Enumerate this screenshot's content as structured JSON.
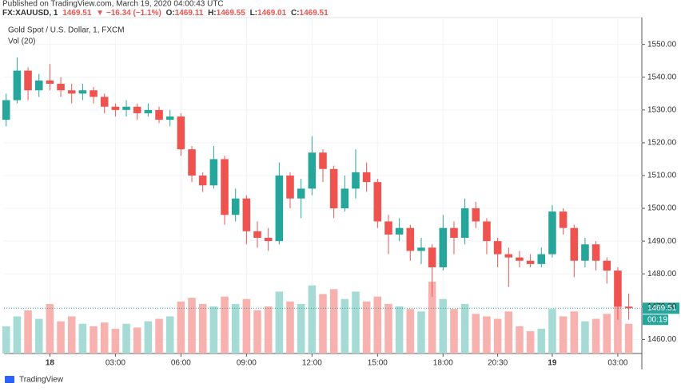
{
  "header": {
    "published": "Published on TradingView.com, March 19, 2020 04:00:43 UTC",
    "symbol": "FX:XAUUSD, 1",
    "last": "1469.51",
    "change": "▼ −16.34 (−1.1%)",
    "o_label": "O:",
    "o": "1469.11",
    "h_label": "H:",
    "h": "1469.55",
    "l_label": "L:",
    "l": "1469.01",
    "c_label": "C:",
    "c": "1469.51"
  },
  "chart_data": {
    "type": "candlestick",
    "title": "Gold Spot / U.S. Dollar, 1, FXCM",
    "volume_title": "Vol (20)",
    "up_color": "#26a69a",
    "down_color": "#ef5350",
    "volume_up_color": "#a6dbd5",
    "volume_down_color": "#f7b2b0",
    "grid": true,
    "x": [
      -2,
      -1.5,
      -1,
      -0.5,
      0,
      0.5,
      1,
      1.5,
      2,
      2.5,
      3,
      3.5,
      4,
      4.5,
      5,
      5.5,
      6,
      6.5,
      7,
      7.5,
      8,
      8.5,
      9,
      9.5,
      10,
      10.5,
      11,
      11.5,
      12,
      12.5,
      13,
      13.5,
      14,
      14.5,
      15,
      15.5,
      16,
      16.5,
      17,
      17.5,
      18,
      18.5,
      19,
      19.5,
      20,
      20.5,
      21,
      21.5,
      22,
      22.5,
      23,
      23.5,
      24,
      24.5,
      25,
      25.5,
      26,
      26.5
    ],
    "open": [
      1527,
      1533,
      1542,
      1536,
      1539,
      1538,
      1536,
      1535,
      1536,
      1534,
      1531,
      1530,
      1531,
      1529,
      1530,
      1527,
      1528,
      1518,
      1510,
      1507,
      1515,
      1498,
      1503,
      1493,
      1491,
      1490,
      1510,
      1503,
      1506,
      1517,
      1512,
      1500,
      1506,
      1511,
      1508,
      1496,
      1492,
      1494,
      1487,
      1488,
      1482,
      1494,
      1491,
      1500,
      1496,
      1490,
      1486,
      1485,
      1484,
      1483,
      1486,
      1499,
      1494,
      1484,
      1489,
      1484,
      1481,
      1470
    ],
    "close": [
      1533,
      1542,
      1536,
      1539,
      1538,
      1536,
      1535,
      1536,
      1534,
      1531,
      1530,
      1531,
      1529,
      1530,
      1527,
      1528,
      1518,
      1510,
      1507,
      1515,
      1498,
      1503,
      1493,
      1491,
      1490,
      1510,
      1503,
      1506,
      1517,
      1512,
      1500,
      1506,
      1511,
      1508,
      1496,
      1492,
      1494,
      1487,
      1488,
      1482,
      1494,
      1491,
      1500,
      1496,
      1490,
      1486,
      1485,
      1484,
      1483,
      1486,
      1499,
      1494,
      1484,
      1489,
      1484,
      1481,
      1470,
      1469.51
    ],
    "high": [
      1535,
      1546,
      1543,
      1541,
      1544,
      1540,
      1538,
      1538,
      1537,
      1535,
      1532,
      1533,
      1532,
      1532,
      1531,
      1530,
      1529,
      1519,
      1511,
      1519,
      1516,
      1506,
      1504,
      1496,
      1494,
      1514,
      1511,
      1509,
      1522,
      1518,
      1513,
      1510,
      1518,
      1514,
      1509,
      1498,
      1497,
      1495,
      1491,
      1489,
      1498,
      1496,
      1503,
      1502,
      1497,
      1491,
      1488,
      1487,
      1486,
      1488,
      1501,
      1500,
      1495,
      1491,
      1490,
      1485,
      1482,
      1474
    ],
    "low": [
      1525,
      1532,
      1533,
      1534,
      1536,
      1534,
      1532,
      1533,
      1532,
      1529,
      1528,
      1528,
      1527,
      1528,
      1526,
      1525,
      1516,
      1508,
      1505,
      1506,
      1495,
      1496,
      1489,
      1488,
      1487,
      1489,
      1500,
      1497,
      1504,
      1508,
      1497,
      1499,
      1503,
      1505,
      1494,
      1486,
      1490,
      1484,
      1483,
      1473,
      1481,
      1486,
      1489,
      1494,
      1486,
      1482,
      1476,
      1482,
      1482,
      1482,
      1485,
      1492,
      1479,
      1482,
      1481,
      1477,
      1466,
      1466
    ],
    "volume": [
      22,
      30,
      35,
      28,
      40,
      26,
      30,
      24,
      22,
      25,
      20,
      24,
      21,
      26,
      28,
      30,
      42,
      45,
      40,
      38,
      46,
      40,
      44,
      35,
      38,
      50,
      42,
      40,
      55,
      48,
      52,
      44,
      50,
      42,
      46,
      40,
      38,
      36,
      34,
      58,
      44,
      36,
      40,
      32,
      30,
      28,
      34,
      22,
      18,
      20,
      36,
      30,
      34,
      26,
      28,
      32,
      44,
      24
    ],
    "xlim": [
      -2.1,
      27.1
    ],
    "xticks": [
      {
        "value": 0,
        "label": "18"
      },
      {
        "value": 3,
        "label": "03:00"
      },
      {
        "value": 6,
        "label": "06:00"
      },
      {
        "value": 9,
        "label": "09:00"
      },
      {
        "value": 12,
        "label": "12:00"
      },
      {
        "value": 15,
        "label": "15:00"
      },
      {
        "value": 18,
        "label": "18:00"
      },
      {
        "value": 20.5,
        "label": "20:30"
      },
      {
        "value": 23,
        "label": "19"
      },
      {
        "value": 26,
        "label": "03:00"
      }
    ],
    "ylim": [
      1455.7,
      1558.2
    ],
    "yticks": [
      {
        "value": 1460,
        "label": "1460.00"
      },
      {
        "value": 1470,
        "label": "1470.00"
      },
      {
        "value": 1480,
        "label": "1480.00"
      },
      {
        "value": 1490,
        "label": "1490.00"
      },
      {
        "value": 1500,
        "label": "1500.00"
      },
      {
        "value": 1510,
        "label": "1510.00"
      },
      {
        "value": 1520,
        "label": "1520.00"
      },
      {
        "value": 1530,
        "label": "1530.00"
      },
      {
        "value": 1540,
        "label": "1540.00"
      },
      {
        "value": 1550,
        "label": "1550.00"
      }
    ],
    "last_price": {
      "value": 1469.51,
      "label": "1469.51"
    },
    "countdown": "00:19"
  },
  "footer": {
    "brand": "TradingView"
  }
}
